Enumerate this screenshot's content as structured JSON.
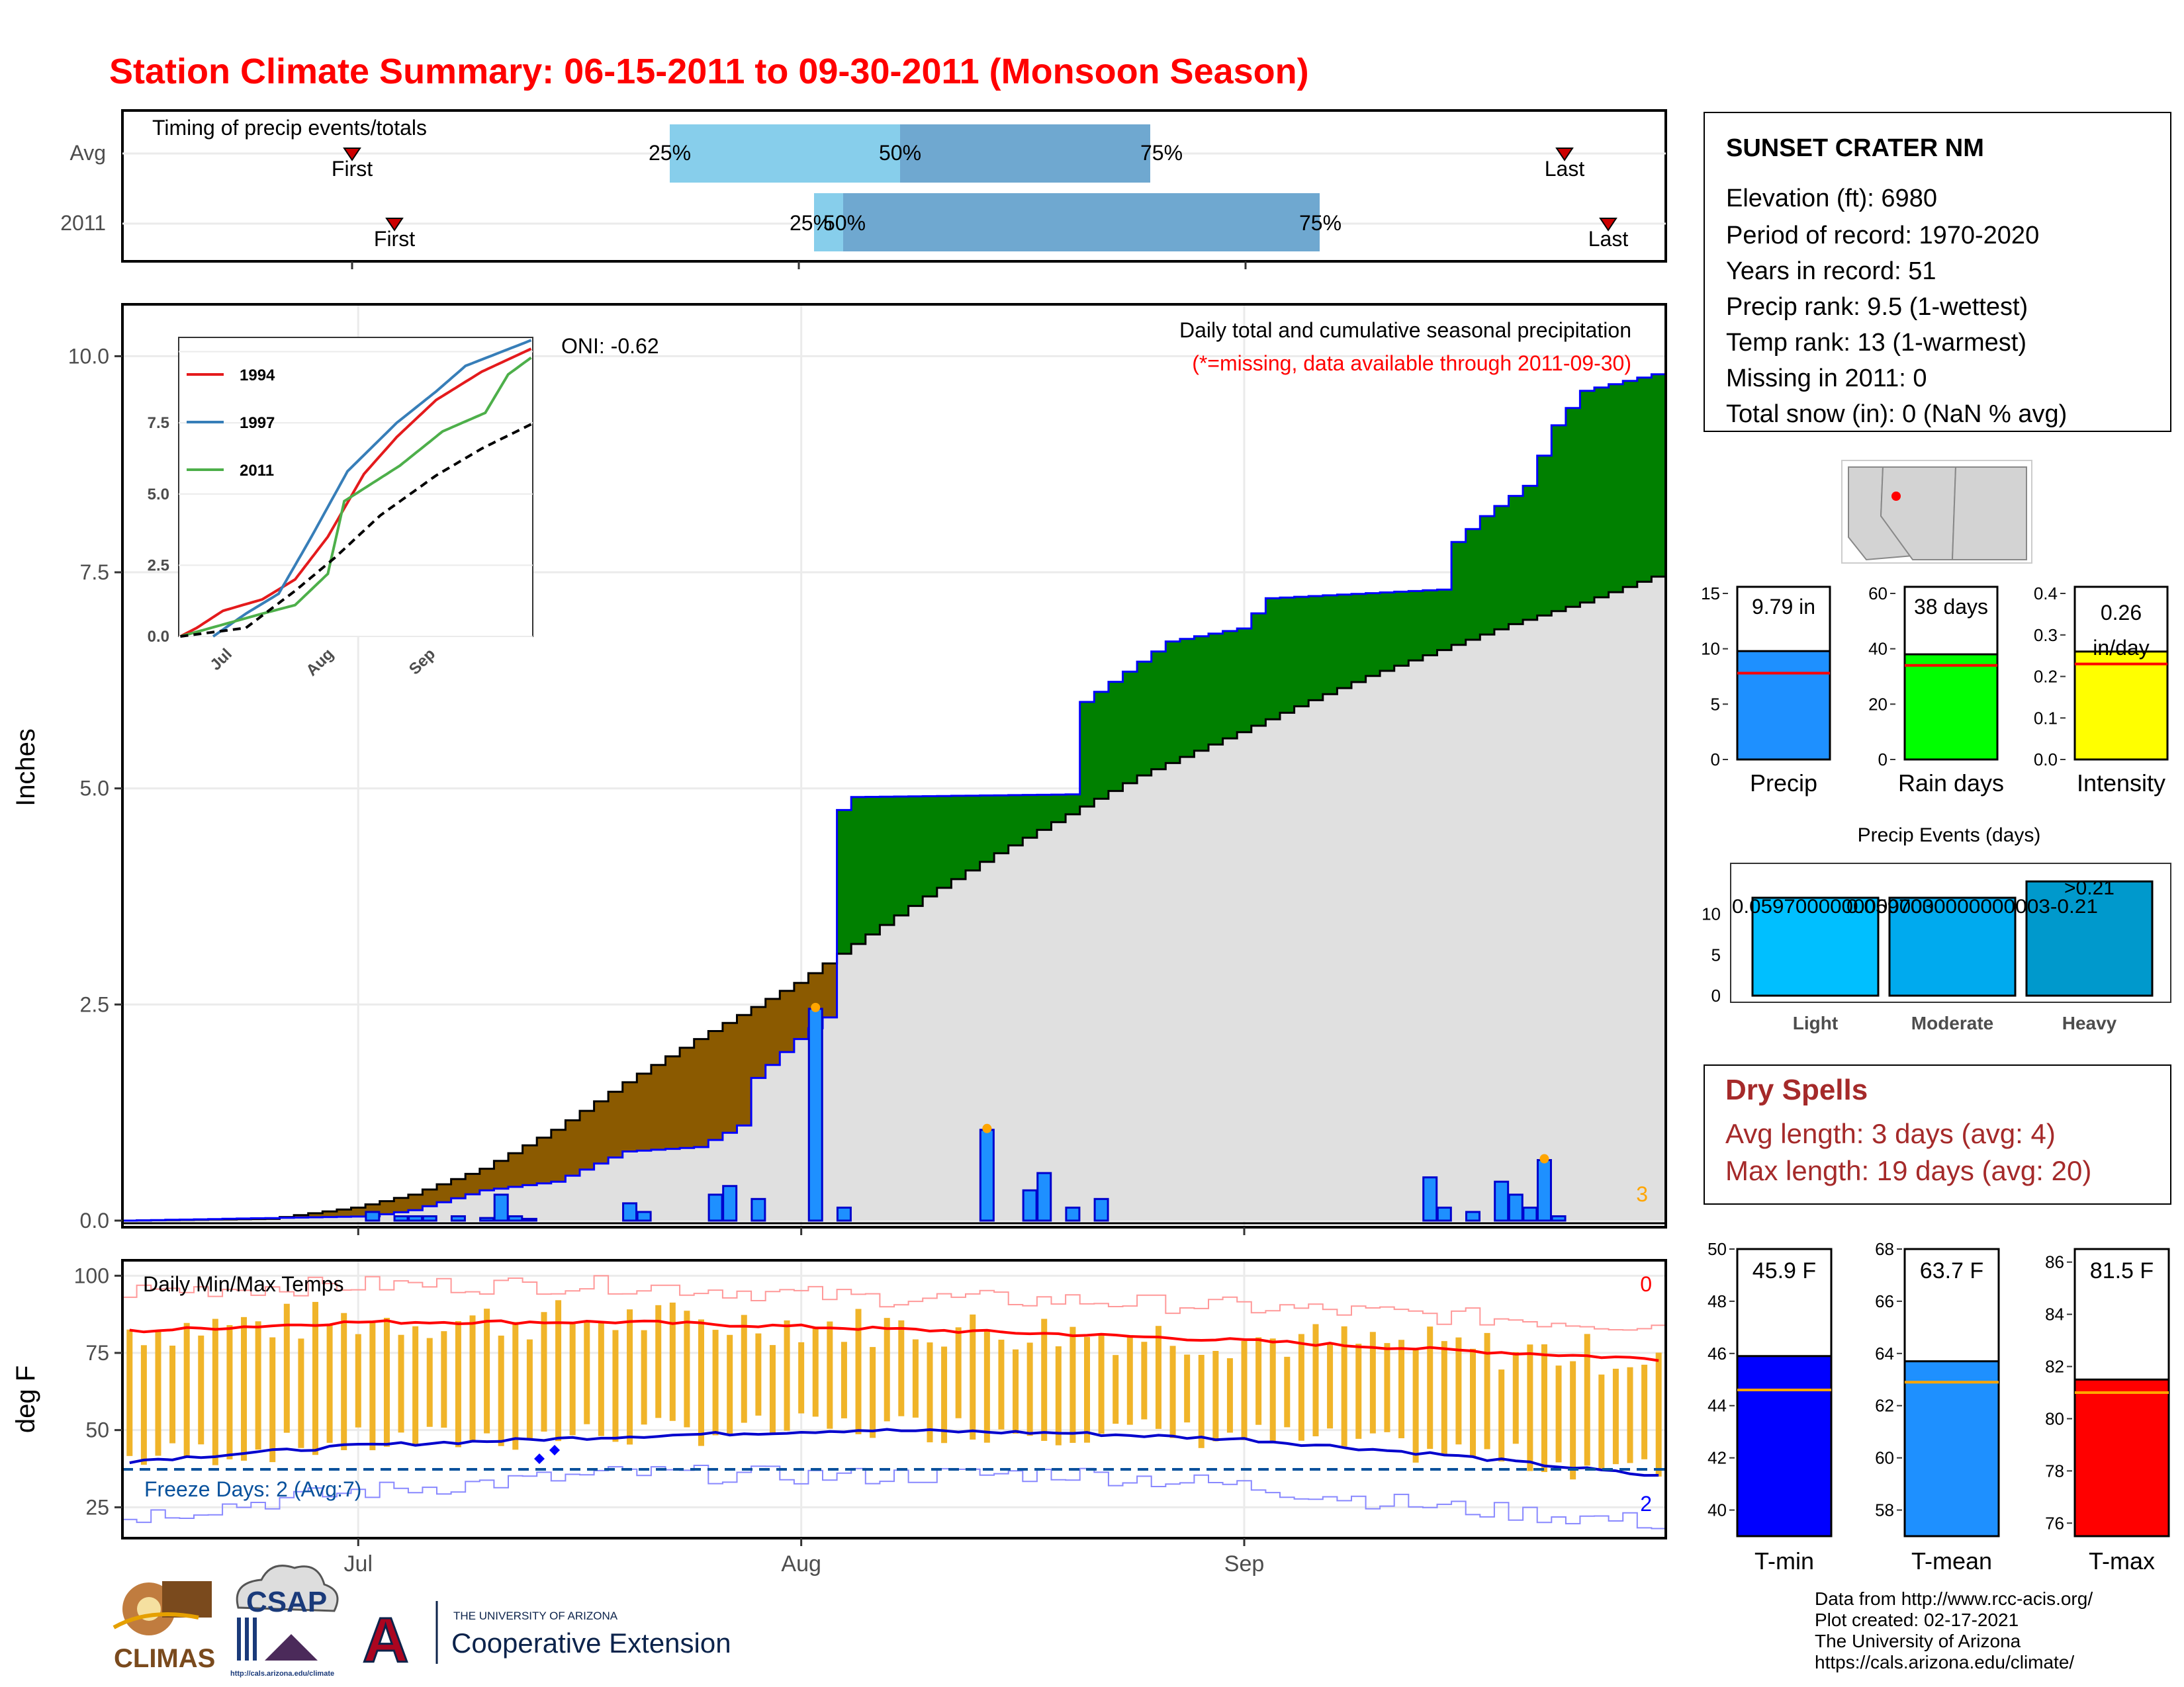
{
  "title": "Station Climate Summary: 06-15-2011 to 09-30-2011 (Monsoon Season)",
  "timing": {
    "label": "Timing of precip events/totals",
    "rows": [
      {
        "name": "Avg",
        "first": "First",
        "last": "Last",
        "p25": "25%",
        "p50": "50%",
        "p75": "75%"
      },
      {
        "name": "2011",
        "first": "First",
        "last": "Last",
        "p25": "25%",
        "p50": "50%",
        "p75": "75%"
      }
    ]
  },
  "station": {
    "name": "SUNSET CRATER NM",
    "lines": [
      "Elevation (ft): 6980",
      "Period of record: 1970-2020",
      "Years in record: 51",
      "Precip rank: 9.5 (1-wettest)",
      "Temp rank: 13 (1-warmest)",
      "Missing in 2011: 0",
      "Total snow (in): 0 (NaN % avg)"
    ]
  },
  "precip_panel": {
    "ylabel": "Inches",
    "y_ticks": [
      "0.0",
      "2.5",
      "5.0",
      "7.5",
      "10.0"
    ],
    "x_ticks": [
      "Jul",
      "Aug",
      "Sep"
    ],
    "oni": "ONI: -0.62",
    "subtitle": "Daily total and cumulative seasonal precipitation",
    "missing_note": "(*=missing, data available through 2011-09-30)",
    "count_label": "3"
  },
  "inset": {
    "y_ticks": [
      "0.0",
      "2.5",
      "5.0",
      "7.5"
    ],
    "x_ticks": [
      "Jul",
      "Aug",
      "Sep"
    ],
    "legend": [
      "1994",
      "1997",
      "2011"
    ]
  },
  "temp_panel": {
    "ylabel": "deg F",
    "y_ticks": [
      "25",
      "50",
      "75",
      "100"
    ],
    "x_ticks": [
      "Jul",
      "Aug",
      "Sep"
    ],
    "title": "Daily Min/Max Temps",
    "freeze": "Freeze Days: 2 (Avg:7)",
    "hot_count": "0",
    "cold_count": "2"
  },
  "summary_bars": {
    "precip": {
      "label": "Precip",
      "value_text": "9.79 in",
      "ticks": [
        "0",
        "5",
        "10",
        "15"
      ]
    },
    "raindays": {
      "label": "Rain days",
      "value_text": "38 days",
      "ticks": [
        "0",
        "20",
        "40",
        "60"
      ]
    },
    "intensity": {
      "label": "Intensity",
      "value_text_1": "0.26",
      "value_text_2": "in/day",
      "ticks": [
        "0.0",
        "0.1",
        "0.2",
        "0.3",
        "0.4"
      ]
    }
  },
  "precip_events": {
    "title": "Precip Events (days)",
    "ticks": [
      "0",
      "5",
      "10"
    ],
    "categories": [
      "Light",
      "Moderate",
      "Heavy"
    ],
    "labels": [
      "0.0597000000000003",
      "0.0597000000000003-0.21",
      ">0.21"
    ],
    "values": [
      12,
      12,
      14
    ]
  },
  "dry_spells": {
    "title": "Dry Spells",
    "avg": "Avg length: 3 days (avg: 4)",
    "max": "Max length: 19 days (avg: 20)"
  },
  "temp_bars": {
    "tmin": {
      "label": "T-min",
      "value_text": "45.9 F",
      "ticks": [
        "40",
        "42",
        "44",
        "46",
        "48",
        "50"
      ]
    },
    "tmean": {
      "label": "T-mean",
      "value_text": "63.7 F",
      "ticks": [
        "58",
        "60",
        "62",
        "64",
        "66",
        "68"
      ]
    },
    "tmax": {
      "label": "T-max",
      "value_text": "81.5 F",
      "ticks": [
        "76",
        "78",
        "80",
        "82",
        "84",
        "86"
      ]
    }
  },
  "credits": [
    "Data from http://www.rcc-acis.org/",
    "Plot created: 02-17-2021",
    "The University of Arizona",
    "https://cals.arizona.edu/climate/"
  ],
  "logos": {
    "climas": "CLIMAS",
    "csap": "CSAP",
    "csap_url": "http://cals.arizona.edu/climate",
    "ua_letter": "A",
    "ua_small": "THE UNIVERSITY OF ARIZONA",
    "ua_big": "Cooperative Extension"
  },
  "chart_data": [
    {
      "type": "area",
      "name": "cumulative_precip",
      "x_start": "2011-06-15",
      "x_end": "2011-09-30",
      "ylim": [
        0,
        10.6
      ],
      "series": [
        {
          "name": "2011",
          "points": [
            [
              "2011-06-15",
              0
            ],
            [
              "2011-07-02",
              0.05
            ],
            [
              "2011-07-05",
              0.12
            ],
            [
              "2011-07-10",
              0.35
            ],
            [
              "2011-07-15",
              0.45
            ],
            [
              "2011-07-20",
              0.8
            ],
            [
              "2011-07-25",
              0.85
            ],
            [
              "2011-07-28",
              1.1
            ],
            [
              "2011-07-29",
              1.65
            ],
            [
              "2011-08-01",
              2.1
            ],
            [
              "2011-08-03",
              2.35
            ],
            [
              "2011-08-04",
              4.75
            ],
            [
              "2011-08-05",
              4.9
            ],
            [
              "2011-08-20",
              4.93
            ],
            [
              "2011-08-21",
              6.0
            ],
            [
              "2011-08-27",
              6.7
            ],
            [
              "2011-09-01",
              6.85
            ],
            [
              "2011-09-03",
              7.2
            ],
            [
              "2011-09-15",
              7.3
            ],
            [
              "2011-09-16",
              7.85
            ],
            [
              "2011-09-18",
              8.15
            ],
            [
              "2011-09-21",
              8.5
            ],
            [
              "2011-09-23",
              9.2
            ],
            [
              "2011-09-25",
              9.6
            ],
            [
              "2011-09-30",
              9.79
            ]
          ]
        },
        {
          "name": "Avg",
          "points": [
            [
              "2011-06-15",
              0
            ],
            [
              "2011-06-25",
              0.02
            ],
            [
              "2011-07-01",
              0.15
            ],
            [
              "2011-07-05",
              0.3
            ],
            [
              "2011-07-10",
              0.6
            ],
            [
              "2011-07-15",
              1.05
            ],
            [
              "2011-07-20",
              1.6
            ],
            [
              "2011-07-25",
              2.1
            ],
            [
              "2011-08-01",
              2.75
            ],
            [
              "2011-08-05",
              3.2
            ],
            [
              "2011-08-10",
              3.75
            ],
            [
              "2011-08-15",
              4.25
            ],
            [
              "2011-08-20",
              4.7
            ],
            [
              "2011-08-25",
              5.15
            ],
            [
              "2011-09-01",
              5.65
            ],
            [
              "2011-09-05",
              5.95
            ],
            [
              "2011-09-10",
              6.3
            ],
            [
              "2011-09-15",
              6.6
            ],
            [
              "2011-09-20",
              6.9
            ],
            [
              "2011-09-25",
              7.15
            ],
            [
              "2011-09-30",
              7.45
            ]
          ]
        }
      ],
      "daily_bars": [
        [
          "2011-07-02",
          0.1
        ],
        [
          "2011-07-04",
          0.05
        ],
        [
          "2011-07-05",
          0.05
        ],
        [
          "2011-07-06",
          0.05
        ],
        [
          "2011-07-08",
          0.05
        ],
        [
          "2011-07-10",
          0.03
        ],
        [
          "2011-07-11",
          0.3
        ],
        [
          "2011-07-12",
          0.05
        ],
        [
          "2011-07-13",
          0.02
        ],
        [
          "2011-07-20",
          0.2
        ],
        [
          "2011-07-21",
          0.1
        ],
        [
          "2011-07-26",
          0.3
        ],
        [
          "2011-07-27",
          0.4
        ],
        [
          "2011-07-29",
          0.25
        ],
        [
          "2011-08-02",
          2.45
        ],
        [
          "2011-08-04",
          0.15
        ],
        [
          "2011-08-14",
          1.05
        ],
        [
          "2011-08-17",
          0.35
        ],
        [
          "2011-08-18",
          0.55
        ],
        [
          "2011-08-20",
          0.15
        ],
        [
          "2011-08-22",
          0.25
        ],
        [
          "2011-09-14",
          0.5
        ],
        [
          "2011-09-15",
          0.15
        ],
        [
          "2011-09-17",
          0.1
        ],
        [
          "2011-09-19",
          0.45
        ],
        [
          "2011-09-20",
          0.3
        ],
        [
          "2011-09-21",
          0.15
        ],
        [
          "2011-09-22",
          0.7
        ],
        [
          "2011-09-23",
          0.05
        ]
      ]
    },
    {
      "type": "line",
      "name": "inset_cumulative",
      "ylim": [
        0,
        10.5
      ],
      "series": [
        {
          "name": "1994",
          "points": [
            [
              "2011-06-15",
              0
            ],
            [
              "2011-06-20",
              0.3
            ],
            [
              "2011-06-28",
              0.9
            ],
            [
              "2011-07-10",
              1.3
            ],
            [
              "2011-07-20",
              2.0
            ],
            [
              "2011-07-30",
              3.5
            ],
            [
              "2011-08-10",
              5.7
            ],
            [
              "2011-08-20",
              7.0
            ],
            [
              "2011-09-01",
              8.3
            ],
            [
              "2011-09-15",
              9.3
            ],
            [
              "2011-09-30",
              10.1
            ]
          ]
        },
        {
          "name": "1997",
          "points": [
            [
              "2011-06-25",
              0
            ],
            [
              "2011-07-05",
              0.8
            ],
            [
              "2011-07-15",
              1.5
            ],
            [
              "2011-07-25",
              3.5
            ],
            [
              "2011-08-05",
              5.8
            ],
            [
              "2011-08-20",
              7.5
            ],
            [
              "2011-09-01",
              8.6
            ],
            [
              "2011-09-10",
              9.5
            ],
            [
              "2011-09-30",
              10.4
            ]
          ]
        },
        {
          "name": "2011",
          "points": [
            [
              "2011-06-15",
              0
            ],
            [
              "2011-07-10",
              0.8
            ],
            [
              "2011-07-20",
              1.1
            ],
            [
              "2011-07-30",
              2.2
            ],
            [
              "2011-08-04",
              4.75
            ],
            [
              "2011-08-21",
              6.0
            ],
            [
              "2011-09-03",
              7.2
            ],
            [
              "2011-09-16",
              7.85
            ],
            [
              "2011-09-23",
              9.2
            ],
            [
              "2011-09-30",
              9.79
            ]
          ]
        },
        {
          "name": "Avg",
          "points": [
            [
              "2011-06-15",
              0
            ],
            [
              "2011-07-05",
              0.3
            ],
            [
              "2011-07-20",
              1.6
            ],
            [
              "2011-08-01",
              2.75
            ],
            [
              "2011-08-15",
              4.25
            ],
            [
              "2011-09-01",
              5.65
            ],
            [
              "2011-09-15",
              6.6
            ],
            [
              "2011-09-30",
              7.45
            ]
          ]
        }
      ]
    },
    {
      "type": "line",
      "name": "daily_temps",
      "ylim": [
        15,
        105
      ],
      "series": [
        {
          "name": "avg_max",
          "points": [
            [
              "2011-06-15",
              82
            ],
            [
              "2011-07-01",
              85
            ],
            [
              "2011-07-20",
              85
            ],
            [
              "2011-08-05",
              83
            ],
            [
              "2011-08-20",
              81
            ],
            [
              "2011-09-01",
              79
            ],
            [
              "2011-09-15",
              76
            ],
            [
              "2011-09-30",
              73
            ]
          ]
        },
        {
          "name": "avg_min",
          "points": [
            [
              "2011-06-15",
              40
            ],
            [
              "2011-07-01",
              45
            ],
            [
              "2011-07-20",
              48
            ],
            [
              "2011-08-05",
              50
            ],
            [
              "2011-08-20",
              49
            ],
            [
              "2011-09-01",
              47
            ],
            [
              "2011-09-15",
              42
            ],
            [
              "2011-09-30",
              35
            ]
          ]
        },
        {
          "name": "record_max",
          "points": [
            [
              "2011-06-15",
              95
            ],
            [
              "2011-07-01",
              97
            ],
            [
              "2011-07-20",
              97
            ],
            [
              "2011-08-05",
              93
            ],
            [
              "2011-08-20",
              92
            ],
            [
              "2011-09-01",
              90
            ],
            [
              "2011-09-15",
              87
            ],
            [
              "2011-09-30",
              84
            ]
          ]
        },
        {
          "name": "record_min",
          "points": [
            [
              "2011-06-15",
              22
            ],
            [
              "2011-07-01",
              30
            ],
            [
              "2011-07-20",
              36
            ],
            [
              "2011-08-05",
              35
            ],
            [
              "2011-08-20",
              36
            ],
            [
              "2011-09-01",
              32
            ],
            [
              "2011-09-15",
              25
            ],
            [
              "2011-09-30",
              20
            ]
          ]
        }
      ],
      "freeze_line": 32,
      "daily_max_range": [
        70,
        92
      ],
      "daily_min_range": [
        35,
        55
      ]
    },
    {
      "type": "bar",
      "name": "season_totals",
      "categories": [
        "Precip",
        "Rain days",
        "Intensity"
      ],
      "values": [
        9.79,
        38,
        0.26
      ],
      "averages": [
        7.8,
        34,
        0.23
      ]
    },
    {
      "type": "bar",
      "name": "temp_averages",
      "categories": [
        "T-min",
        "T-mean",
        "T-max"
      ],
      "values": [
        45.9,
        63.7,
        81.5
      ],
      "averages": [
        44.6,
        62.9,
        81.0
      ]
    }
  ]
}
